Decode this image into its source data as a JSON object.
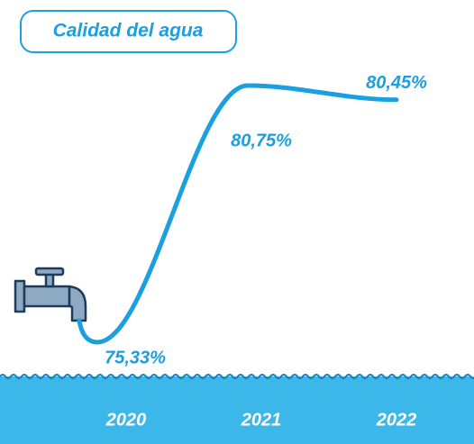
{
  "chart_data": {
    "type": "line",
    "title": "Calidad del agua",
    "categories": [
      "2020",
      "2021",
      "2022"
    ],
    "values": [
      75.33,
      80.75,
      80.45
    ],
    "value_labels": [
      "75,33%",
      "80,75%",
      "80,45%"
    ],
    "color": "#1a9fe0"
  }
}
